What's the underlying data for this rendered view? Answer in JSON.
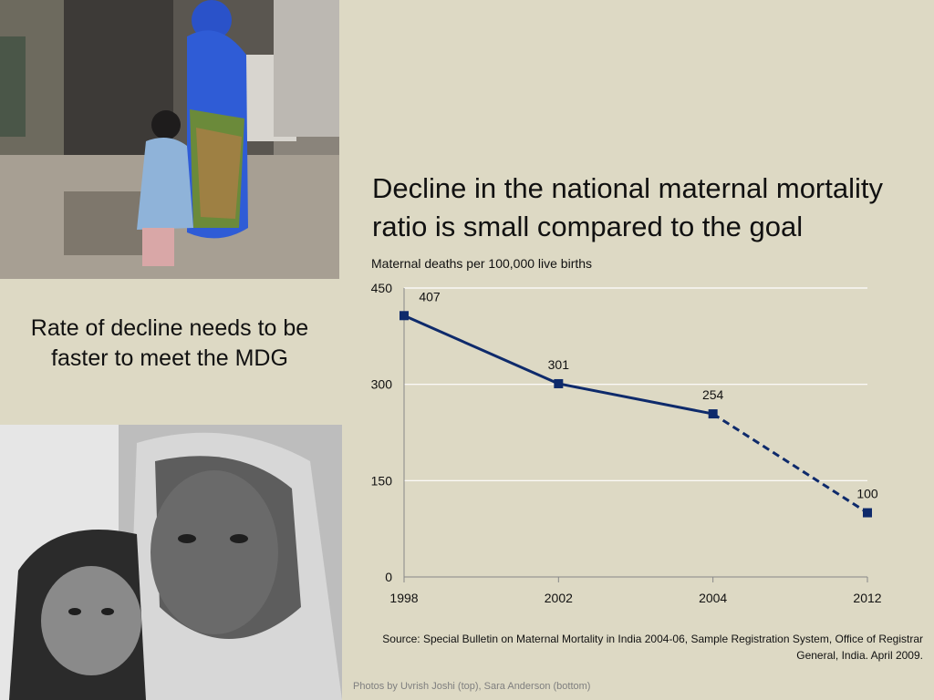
{
  "title": "Decline in the national maternal mortality ratio is small compared to the goal",
  "unit_label": "Maternal deaths per 100,000 live births",
  "side_note": "Rate of decline needs to be faster to meet the MDG",
  "source": "Source: Special Bulletin on Maternal Mortality in India 2004-06, Sample Registration System, Office of Registrar General, India. April 2009.",
  "photo_credit": "Photos by Uvrish Joshi (top), Sara Anderson (bottom)",
  "chart_data": {
    "type": "line",
    "categories": [
      "1998",
      "2002",
      "2004",
      "2012"
    ],
    "values": [
      407,
      301,
      254,
      100
    ],
    "data_labels": [
      "407",
      "301",
      "254",
      "100"
    ],
    "dashed_from_index": 2,
    "ylim": [
      0,
      450
    ],
    "yticks": [
      0,
      150,
      300,
      450
    ],
    "grid": true,
    "colors": {
      "line": "#0e2a6b",
      "grid": "#ffffff",
      "axis": "#888888",
      "background": "#ddd9c4"
    }
  }
}
